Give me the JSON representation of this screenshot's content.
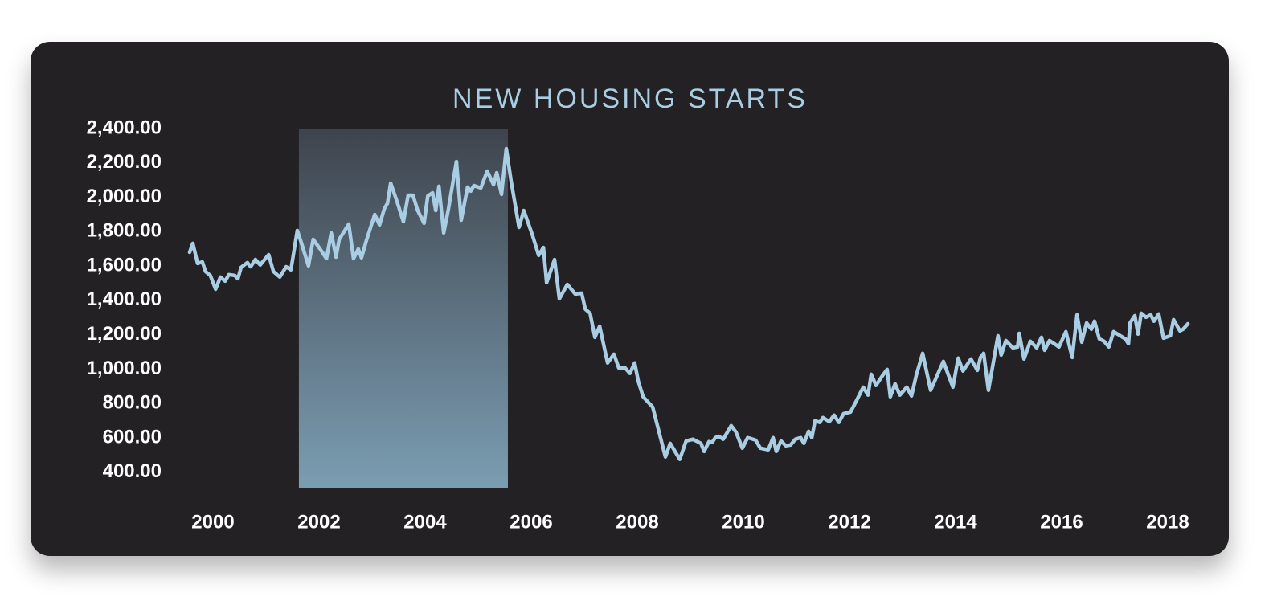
{
  "chart_data": {
    "type": "line",
    "title": "NEW HOUSING STARTS",
    "xlim": [
      1999.5,
      2018.5
    ],
    "ylim": [
      310,
      2400
    ],
    "xticks": [
      2000,
      2002,
      2004,
      2006,
      2008,
      2010,
      2012,
      2014,
      2016,
      2018
    ],
    "yticks": [
      {
        "value": 2400,
        "label": "2,400.00"
      },
      {
        "value": 2200,
        "label": "2,200.00"
      },
      {
        "value": 2000,
        "label": "2,000.00"
      },
      {
        "value": 1800,
        "label": "1,800.00"
      },
      {
        "value": 1600,
        "label": "1,600.00"
      },
      {
        "value": 1400,
        "label": "1,400.00"
      },
      {
        "value": 1200,
        "label": "1,200.00"
      },
      {
        "value": 1000,
        "label": "1,000.00"
      },
      {
        "value": 800,
        "label": "800.00"
      },
      {
        "value": 600,
        "label": "600.00"
      },
      {
        "value": 400,
        "label": "400.00"
      }
    ],
    "highlight_range": [
      2001.62,
      2005.56
    ],
    "color": "#a9cde3",
    "x": [
      1999.56,
      1999.62,
      1999.71,
      1999.8,
      1999.86,
      1999.95,
      2000.05,
      2000.14,
      2000.23,
      2000.3,
      2000.41,
      2000.47,
      2000.53,
      2000.65,
      2000.71,
      2000.8,
      2000.89,
      2001.05,
      2001.14,
      2001.26,
      2001.38,
      2001.47,
      2001.59,
      2001.68,
      2001.8,
      2001.89,
      2002.02,
      2002.14,
      2002.23,
      2002.32,
      2002.38,
      2002.56,
      2002.65,
      2002.74,
      2002.8,
      2002.89,
      2003.05,
      2003.14,
      2003.23,
      2003.29,
      2003.35,
      2003.47,
      2003.59,
      2003.68,
      2003.77,
      2003.86,
      2003.98,
      2004.05,
      2004.14,
      2004.2,
      2004.26,
      2004.35,
      2004.44,
      2004.59,
      2004.68,
      2004.8,
      2004.86,
      2004.92,
      2005.05,
      2005.17,
      2005.29,
      2005.35,
      2005.44,
      2005.53,
      2005.62,
      2005.77,
      2005.86,
      2006.02,
      2006.14,
      2006.23,
      2006.29,
      2006.44,
      2006.53,
      2006.68,
      2006.83,
      2006.95,
      2007.02,
      2007.11,
      2007.2,
      2007.29,
      2007.44,
      2007.56,
      2007.65,
      2007.77,
      2007.86,
      2007.95,
      2008.02,
      2008.11,
      2008.29,
      2008.53,
      2008.62,
      2008.8,
      2008.92,
      2009.05,
      2009.2,
      2009.26,
      2009.35,
      2009.41,
      2009.47,
      2009.53,
      2009.62,
      2009.77,
      2009.86,
      2009.98,
      2010.08,
      2010.14,
      2010.23,
      2010.32,
      2010.47,
      2010.56,
      2010.62,
      2010.71,
      2010.8,
      2010.89,
      2010.98,
      2011.08,
      2011.14,
      2011.23,
      2011.29,
      2011.35,
      2011.44,
      2011.5,
      2011.62,
      2011.71,
      2011.8,
      2011.89,
      2012.02,
      2012.14,
      2012.26,
      2012.35,
      2012.41,
      2012.5,
      2012.62,
      2012.71,
      2012.77,
      2012.86,
      2012.95,
      2013.08,
      2013.17,
      2013.26,
      2013.38,
      2013.53,
      2013.77,
      2013.95,
      2014.05,
      2014.14,
      2014.29,
      2014.41,
      2014.47,
      2014.53,
      2014.62,
      2014.8,
      2014.86,
      2014.95,
      2015.08,
      2015.17,
      2015.2,
      2015.29,
      2015.41,
      2015.53,
      2015.62,
      2015.68,
      2015.77,
      2015.86,
      2015.95,
      2016.08,
      2016.2,
      2016.29,
      2016.38,
      2016.47,
      2016.56,
      2016.62,
      2016.71,
      2016.8,
      2016.89,
      2016.98,
      2017.2,
      2017.26,
      2017.29,
      2017.38,
      2017.44,
      2017.5,
      2017.59,
      2017.68,
      2017.74,
      2017.83,
      2017.92,
      2018.05,
      2018.11,
      2018.23,
      2018.29,
      2018.38
    ],
    "values": [
      1680,
      1732,
      1615,
      1624,
      1568,
      1545,
      1465,
      1536,
      1512,
      1550,
      1545,
      1526,
      1592,
      1620,
      1596,
      1638,
      1606,
      1666,
      1568,
      1536,
      1596,
      1578,
      1807,
      1722,
      1601,
      1755,
      1699,
      1643,
      1793,
      1652,
      1755,
      1844,
      1643,
      1699,
      1648,
      1746,
      1900,
      1839,
      1933,
      1965,
      2082,
      1975,
      1858,
      2012,
      2012,
      1923,
      1849,
      2008,
      2026,
      1923,
      2064,
      1793,
      1933,
      2208,
      1867,
      2059,
      2036,
      2068,
      2054,
      2152,
      2073,
      2143,
      2017,
      2283,
      2096,
      1825,
      1923,
      1783,
      1662,
      1708,
      1503,
      1638,
      1409,
      1493,
      1437,
      1442,
      1349,
      1325,
      1185,
      1250,
      1036,
      1087,
      1007,
      1007,
      975,
      1036,
      928,
      839,
      779,
      489,
      568,
      475,
      582,
      592,
      568,
      521,
      578,
      573,
      601,
      610,
      592,
      671,
      634,
      540,
      601,
      596,
      587,
      540,
      531,
      601,
      521,
      582,
      554,
      559,
      592,
      601,
      568,
      638,
      601,
      699,
      690,
      718,
      694,
      732,
      690,
      741,
      750,
      821,
      895,
      849,
      970,
      905,
      961,
      998,
      839,
      914,
      849,
      895,
      844,
      965,
      1092,
      877,
      1045,
      895,
      1064,
      989,
      1059,
      993,
      1068,
      1092,
      877,
      1194,
      1082,
      1166,
      1124,
      1129,
      1208,
      1059,
      1162,
      1124,
      1185,
      1110,
      1166,
      1148,
      1129,
      1218,
      1068,
      1316,
      1157,
      1269,
      1232,
      1279,
      1176,
      1162,
      1129,
      1218,
      1176,
      1148,
      1269,
      1311,
      1204,
      1325,
      1302,
      1316,
      1279,
      1321,
      1180,
      1194,
      1288,
      1222,
      1232,
      1264
    ]
  }
}
